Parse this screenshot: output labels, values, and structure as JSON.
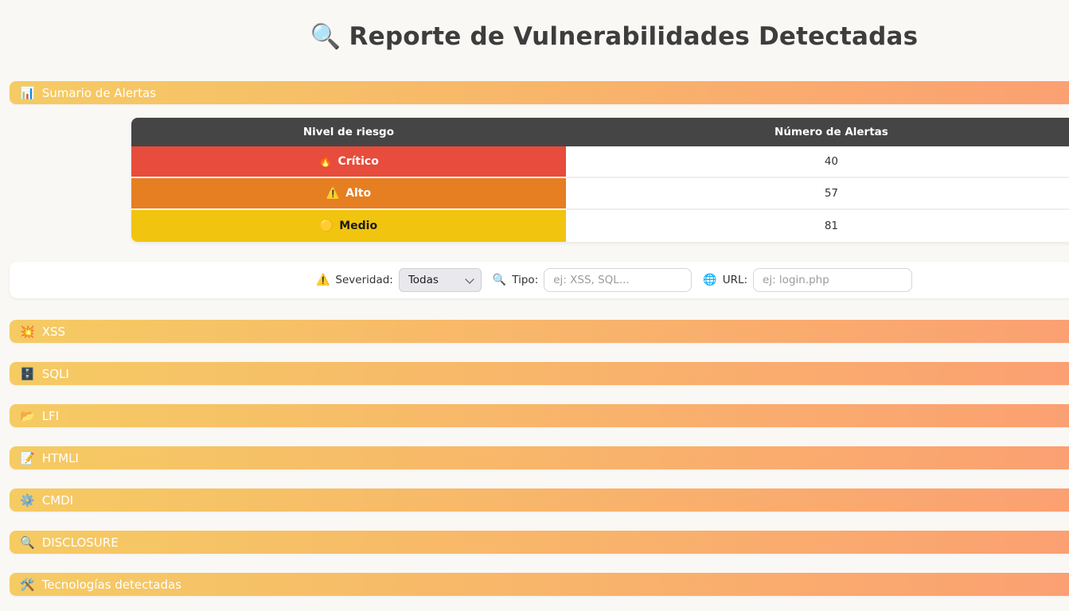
{
  "page": {
    "title_icon": "🔍",
    "title": "Reporte de Vulnerabilidades Detectadas",
    "background": "#faf8f5"
  },
  "summary": {
    "header": {
      "icon": "📊",
      "label": "Sumario de Alertas"
    },
    "table": {
      "columns": {
        "level": "Nivel de riesgo",
        "count": "Número de Alertas"
      },
      "rows": [
        {
          "icon": "🔥",
          "level": "Crítico",
          "count": "40",
          "color": "#e74c3c",
          "text_color": "#ffffff"
        },
        {
          "icon": "⚠️",
          "level": "Alto",
          "count": "57",
          "color": "#e67e22",
          "text_color": "#ffffff"
        },
        {
          "icon": "🟡",
          "level": "Medio",
          "count": "81",
          "color": "#f1c40f",
          "text_color": "#1b1b1b"
        }
      ]
    }
  },
  "filters": {
    "severity": {
      "icon": "⚠️",
      "label": "Severidad:",
      "selected": "Todas"
    },
    "type": {
      "icon": "🔍",
      "label": "Tipo:",
      "placeholder": "ej: XSS, SQL..."
    },
    "url": {
      "icon": "🌐",
      "label": "URL:",
      "placeholder": "ej: login.php"
    }
  },
  "sections": [
    {
      "icon": "💥",
      "label": "XSS"
    },
    {
      "icon": "🗄️",
      "label": "SQLI"
    },
    {
      "icon": "📂",
      "label": "LFI"
    },
    {
      "icon": "📝",
      "label": "HTMLI"
    },
    {
      "icon": "⚙️",
      "label": "CMDI"
    },
    {
      "icon": "🔍",
      "label": "DISCLOSURE"
    },
    {
      "icon": "🛠️",
      "label": "Tecnologías detectadas"
    }
  ],
  "colors": {
    "page_background": "#faf8f5",
    "bar_gradient_start": "#f5cb63",
    "bar_gradient_end": "#fc9a74",
    "table_header_bg": "#454545",
    "critical": "#e74c3c",
    "high": "#e67e22",
    "medium": "#f1c40f"
  }
}
